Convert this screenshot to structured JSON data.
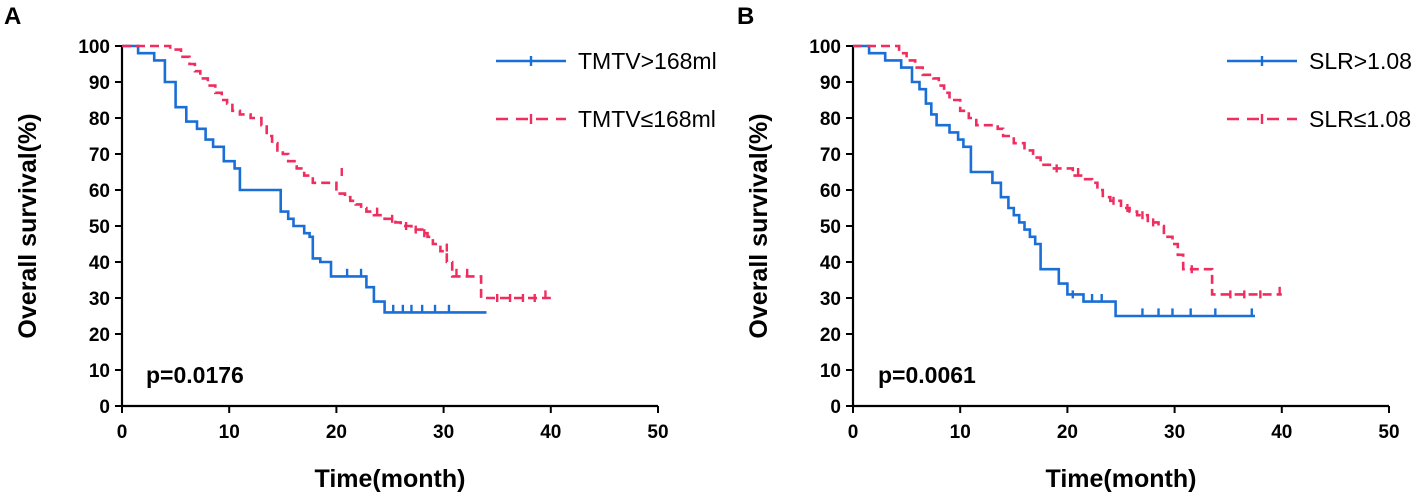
{
  "chart_data": [
    {
      "type": "line",
      "subtype": "kaplan-meier",
      "panel_label": "A",
      "xlabel": "Time(month)",
      "ylabel": "Overall survival(%)",
      "xlim": [
        0,
        50
      ],
      "ylim": [
        0,
        100
      ],
      "xticks": [
        "0",
        "10",
        "20",
        "30",
        "40",
        "50"
      ],
      "yticks": [
        "0",
        "10",
        "20",
        "30",
        "40",
        "50",
        "60",
        "70",
        "80",
        "90",
        "100"
      ],
      "annotation": "p=0.0176",
      "legend_position": "top-right",
      "series": [
        {
          "name": "TMTV>168ml",
          "color": "#1a6fd6",
          "dash": "solid",
          "steps": [
            [
              0,
              100
            ],
            [
              1.5,
              98
            ],
            [
              3,
              96
            ],
            [
              4,
              90
            ],
            [
              5,
              83
            ],
            [
              6,
              79
            ],
            [
              7,
              77
            ],
            [
              7.8,
              74
            ],
            [
              8.5,
              72
            ],
            [
              9.5,
              68
            ],
            [
              10.5,
              66
            ],
            [
              11,
              60
            ],
            [
              13,
              60
            ],
            [
              14.5,
              60
            ],
            [
              14.8,
              54
            ],
            [
              15.5,
              52
            ],
            [
              16,
              50
            ],
            [
              17,
              48
            ],
            [
              17.5,
              47
            ],
            [
              17.8,
              41
            ],
            [
              18.5,
              40
            ],
            [
              19.5,
              36
            ],
            [
              22,
              36
            ],
            [
              22.8,
              33
            ],
            [
              23.5,
              29
            ],
            [
              24.5,
              26
            ],
            [
              34,
              26
            ]
          ],
          "censors": [
            [
              21,
              37
            ],
            [
              22.3,
              37
            ],
            [
              25.3,
              27
            ],
            [
              26.2,
              27
            ],
            [
              27,
              27
            ],
            [
              28,
              27
            ],
            [
              29.2,
              27
            ],
            [
              30.5,
              27
            ]
          ]
        },
        {
          "name": "TMTV≤168ml",
          "color": "#f02d5f",
          "dash": "dashed",
          "steps": [
            [
              0,
              100
            ],
            [
              2.5,
              100
            ],
            [
              4.5,
              99
            ],
            [
              5.5,
              97
            ],
            [
              6.3,
              95
            ],
            [
              6.8,
              93
            ],
            [
              7.3,
              91
            ],
            [
              8,
              89
            ],
            [
              8.7,
              87
            ],
            [
              9.3,
              85
            ],
            [
              9.8,
              84
            ],
            [
              10.3,
              82
            ],
            [
              11,
              81
            ],
            [
              12,
              80
            ],
            [
              13,
              78
            ],
            [
              13.5,
              75
            ],
            [
              14,
              73
            ],
            [
              14.5,
              71
            ],
            [
              15,
              70
            ],
            [
              15.5,
              68
            ],
            [
              16.3,
              66
            ],
            [
              17,
              64
            ],
            [
              17.8,
              62
            ],
            [
              19,
              62
            ],
            [
              20,
              59
            ],
            [
              20.8,
              58
            ],
            [
              21.3,
              57
            ],
            [
              21.8,
              56
            ],
            [
              22.3,
              55
            ],
            [
              22.8,
              54
            ],
            [
              23.5,
              53
            ],
            [
              24.5,
              52
            ],
            [
              25.5,
              51
            ],
            [
              26,
              50
            ],
            [
              27,
              49
            ],
            [
              28,
              48
            ],
            [
              28.5,
              47
            ],
            [
              29,
              45
            ],
            [
              29.7,
              43
            ],
            [
              30.3,
              40
            ],
            [
              30.8,
              36
            ],
            [
              31.5,
              36
            ],
            [
              33.5,
              30
            ],
            [
              40,
              30
            ]
          ],
          "censors": [
            [
              20.5,
              65
            ],
            [
              23.8,
              54
            ],
            [
              25.2,
              52
            ],
            [
              26.5,
              50
            ],
            [
              27.4,
              49
            ],
            [
              28.2,
              48
            ],
            [
              30.3,
              44
            ],
            [
              31.2,
              37
            ],
            [
              32.2,
              37
            ],
            [
              35,
              30
            ],
            [
              36.2,
              30
            ],
            [
              37.4,
              30
            ],
            [
              38.5,
              30
            ],
            [
              39.5,
              31
            ]
          ]
        }
      ]
    },
    {
      "type": "line",
      "subtype": "kaplan-meier",
      "panel_label": "B",
      "xlabel": "Time(month)",
      "ylabel": "Overall survival(%)",
      "xlim": [
        0,
        50
      ],
      "ylim": [
        0,
        100
      ],
      "xticks": [
        "0",
        "10",
        "20",
        "30",
        "40",
        "50"
      ],
      "yticks": [
        "0",
        "10",
        "20",
        "30",
        "40",
        "50",
        "60",
        "70",
        "80",
        "90",
        "100"
      ],
      "annotation": "p=0.0061",
      "legend_position": "top-right",
      "series": [
        {
          "name": "SLR>1.08",
          "color": "#1a6fd6",
          "dash": "solid",
          "steps": [
            [
              0,
              100
            ],
            [
              1.5,
              98
            ],
            [
              3,
              96
            ],
            [
              4.5,
              94
            ],
            [
              5.5,
              90
            ],
            [
              6.2,
              88
            ],
            [
              6.8,
              84
            ],
            [
              7.3,
              81
            ],
            [
              7.8,
              78
            ],
            [
              9,
              76
            ],
            [
              9.8,
              74
            ],
            [
              10.3,
              72
            ],
            [
              11,
              65
            ],
            [
              12.5,
              65
            ],
            [
              13,
              62
            ],
            [
              13.8,
              58
            ],
            [
              14.5,
              55
            ],
            [
              15,
              53
            ],
            [
              15.5,
              51
            ],
            [
              16,
              49
            ],
            [
              16.5,
              47
            ],
            [
              17,
              45
            ],
            [
              17.5,
              38
            ],
            [
              18.5,
              38
            ],
            [
              19.2,
              34
            ],
            [
              20,
              31
            ],
            [
              21,
              31
            ],
            [
              21.5,
              29
            ],
            [
              24.5,
              29
            ],
            [
              24.5,
              25
            ],
            [
              37.5,
              25
            ]
          ],
          "censors": [
            [
              20.5,
              31
            ],
            [
              22.3,
              30
            ],
            [
              23.2,
              30
            ],
            [
              27,
              26
            ],
            [
              28.5,
              26
            ],
            [
              29.8,
              26
            ],
            [
              31.5,
              26
            ],
            [
              33.8,
              26
            ],
            [
              37.2,
              26
            ]
          ]
        },
        {
          "name": "SLR≤1.08",
          "color": "#f02d5f",
          "dash": "dashed",
          "steps": [
            [
              0,
              100
            ],
            [
              3.5,
              100
            ],
            [
              4.3,
              98
            ],
            [
              5,
              96
            ],
            [
              5.8,
              94
            ],
            [
              6.5,
              92
            ],
            [
              7.5,
              91
            ],
            [
              8,
              89
            ],
            [
              8.5,
              87
            ],
            [
              9,
              85
            ],
            [
              10,
              82
            ],
            [
              10.8,
              80
            ],
            [
              11.5,
              78
            ],
            [
              13.5,
              77
            ],
            [
              14,
              75
            ],
            [
              15,
              73
            ],
            [
              16,
              71
            ],
            [
              16.8,
              69
            ],
            [
              17.5,
              67
            ],
            [
              18.5,
              66
            ],
            [
              20,
              66
            ],
            [
              20.5,
              64
            ],
            [
              21.5,
              63
            ],
            [
              22.3,
              62
            ],
            [
              22.8,
              60
            ],
            [
              23.3,
              58
            ],
            [
              24,
              57
            ],
            [
              25,
              55
            ],
            [
              25.8,
              54
            ],
            [
              26.5,
              53
            ],
            [
              27.5,
              51
            ],
            [
              28.5,
              50
            ],
            [
              29,
              47
            ],
            [
              29.8,
              45
            ],
            [
              30.3,
              42
            ],
            [
              30.8,
              38
            ],
            [
              32.5,
              38
            ],
            [
              33.5,
              31
            ],
            [
              40,
              31
            ]
          ],
          "censors": [
            [
              19,
              66
            ],
            [
              21,
              65
            ],
            [
              24.3,
              57
            ],
            [
              25.6,
              55
            ],
            [
              27,
              53
            ],
            [
              28,
              51
            ],
            [
              31.6,
              38
            ],
            [
              35.2,
              31
            ],
            [
              36.5,
              31
            ],
            [
              38,
              31
            ],
            [
              39.8,
              32
            ]
          ]
        }
      ]
    }
  ]
}
